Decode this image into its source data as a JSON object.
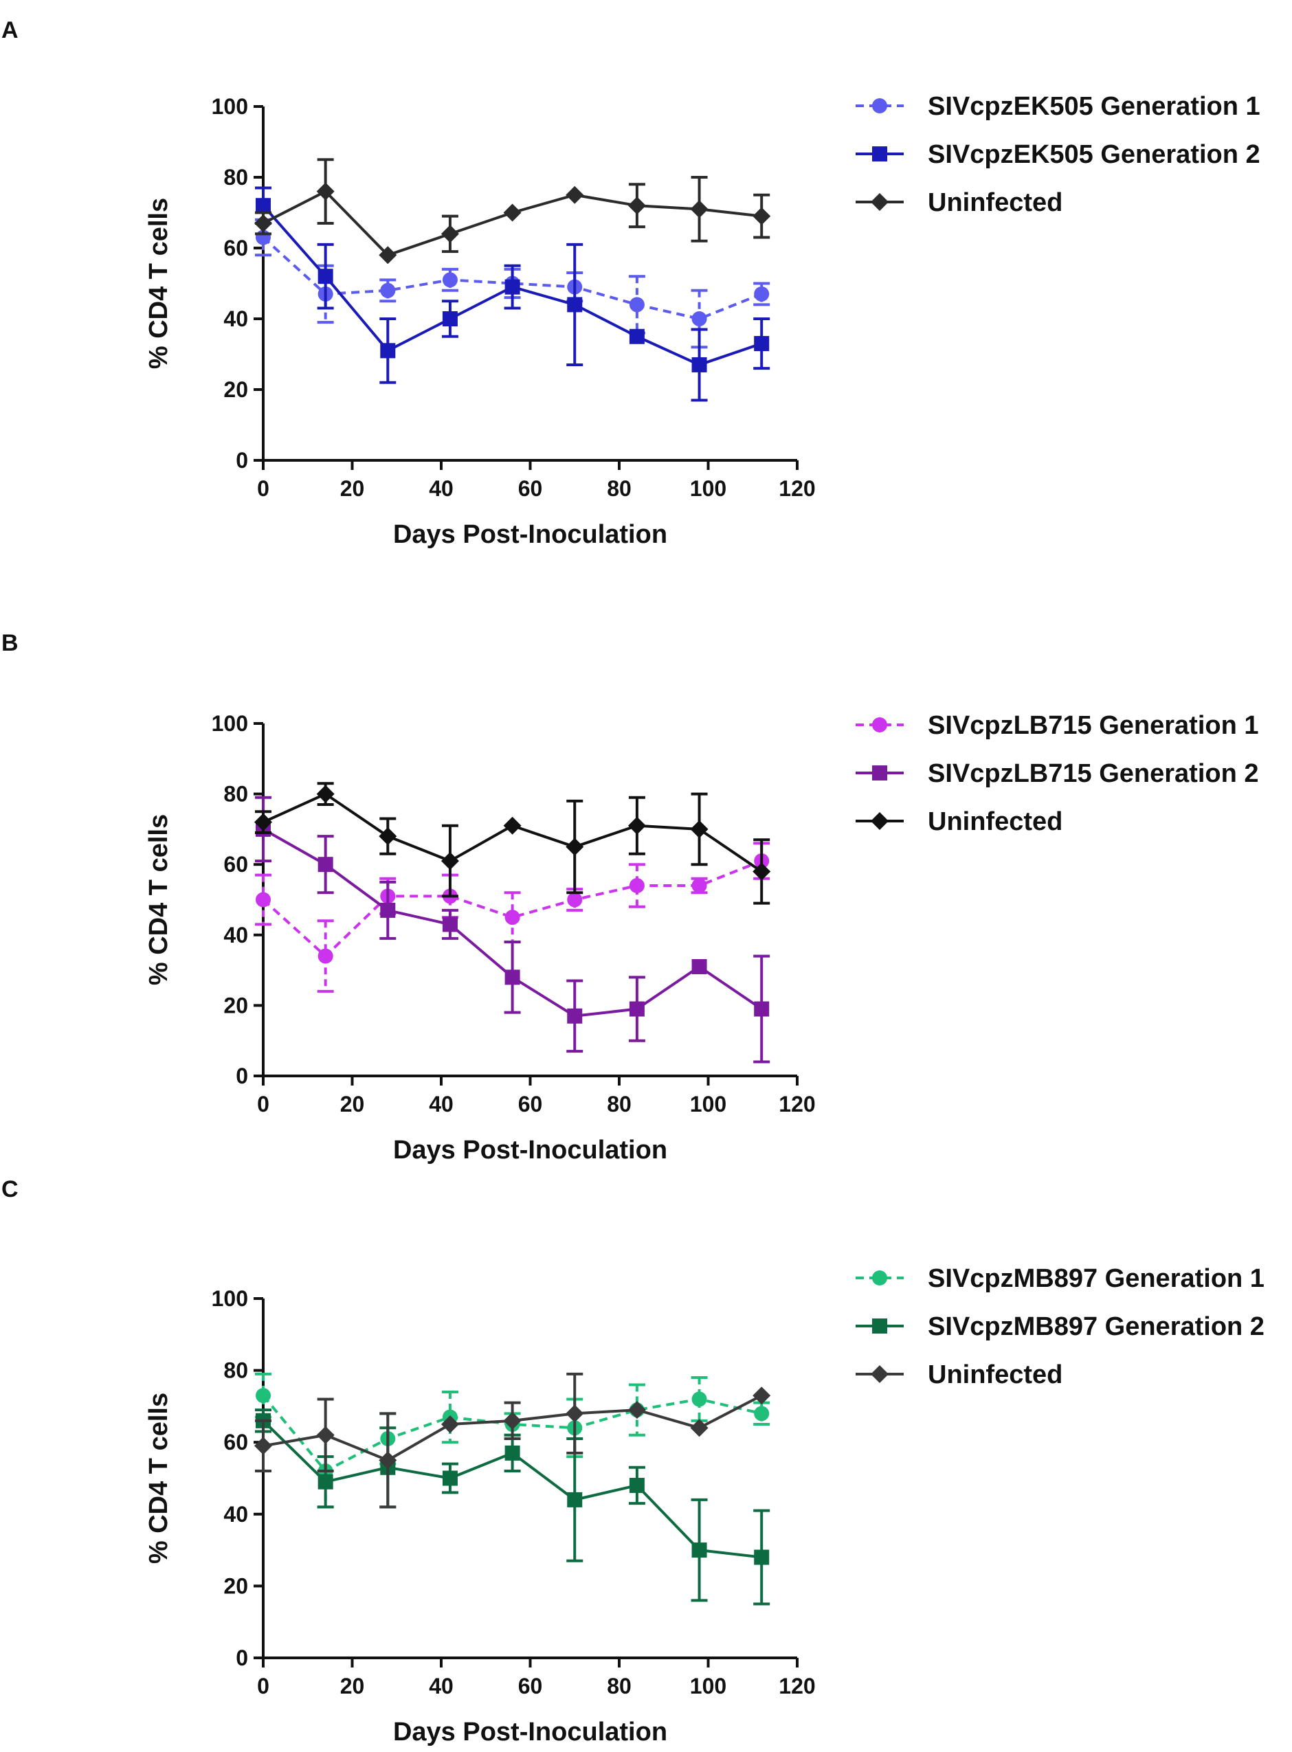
{
  "figure": {
    "panels": [
      {
        "label": "A",
        "chart_data": {
          "type": "line",
          "title": "",
          "xlabel": "Days Post-Inoculation",
          "ylabel": "% CD4 T cells",
          "xlim": [
            0,
            120
          ],
          "ylim": [
            0,
            100
          ],
          "xticks": [
            0,
            20,
            40,
            60,
            80,
            100,
            120
          ],
          "yticks": [
            0,
            20,
            40,
            60,
            80,
            100
          ],
          "legend_position": "top-right",
          "series": [
            {
              "name": "SIVcpzEK505 Generation 1",
              "color": "#5b5bf0",
              "marker": "circle",
              "dash": true,
              "x": [
                0,
                14,
                28,
                42,
                56,
                70,
                84,
                98,
                112
              ],
              "y": [
                63,
                47,
                48,
                51,
                50,
                49,
                44,
                40,
                47
              ],
              "err": [
                5,
                8,
                3,
                3,
                4,
                4,
                8,
                8,
                3
              ]
            },
            {
              "name": "SIVcpzEK505 Generation 2",
              "color": "#1a1ab8",
              "marker": "square",
              "dash": false,
              "x": [
                0,
                14,
                28,
                42,
                56,
                70,
                84,
                98,
                112
              ],
              "y": [
                72,
                52,
                31,
                40,
                49,
                44,
                35,
                27,
                33
              ],
              "err": [
                5,
                9,
                9,
                5,
                6,
                17,
                0,
                10,
                7
              ]
            },
            {
              "name": "Uninfected",
              "color": "#2b2b2b",
              "marker": "diamond",
              "dash": false,
              "x": [
                0,
                14,
                28,
                42,
                56,
                70,
                84,
                98,
                112
              ],
              "y": [
                67,
                76,
                58,
                64,
                70,
                75,
                72,
                71,
                69
              ],
              "err": [
                3,
                9,
                0,
                5,
                0,
                0,
                6,
                9,
                6
              ]
            }
          ]
        }
      },
      {
        "label": "B",
        "chart_data": {
          "type": "line",
          "title": "",
          "xlabel": "Days Post-Inoculation",
          "ylabel": "% CD4 T cells",
          "xlim": [
            0,
            120
          ],
          "ylim": [
            0,
            100
          ],
          "xticks": [
            0,
            20,
            40,
            60,
            80,
            100,
            120
          ],
          "yticks": [
            0,
            20,
            40,
            60,
            80,
            100
          ],
          "legend_position": "top-right",
          "series": [
            {
              "name": "SIVcpzLB715 Generation 1",
              "color": "#cc33ee",
              "marker": "circle",
              "dash": true,
              "x": [
                0,
                14,
                28,
                42,
                56,
                70,
                84,
                98,
                112
              ],
              "y": [
                50,
                34,
                51,
                51,
                45,
                50,
                54,
                54,
                61
              ],
              "err": [
                7,
                10,
                5,
                6,
                7,
                3,
                6,
                2,
                5
              ]
            },
            {
              "name": "SIVcpzLB715 Generation 2",
              "color": "#7a1a9e",
              "marker": "square",
              "dash": false,
              "x": [
                0,
                14,
                28,
                42,
                56,
                70,
                84,
                98,
                112
              ],
              "y": [
                70,
                60,
                47,
                43,
                28,
                17,
                19,
                31,
                19
              ],
              "err": [
                9,
                8,
                8,
                4,
                10,
                10,
                9,
                0,
                15
              ]
            },
            {
              "name": "Uninfected",
              "color": "#111111",
              "marker": "diamond",
              "dash": false,
              "x": [
                0,
                14,
                28,
                42,
                56,
                70,
                84,
                98,
                112
              ],
              "y": [
                72,
                80,
                68,
                61,
                71,
                65,
                71,
                70,
                58
              ],
              "err": [
                3,
                3,
                5,
                10,
                0,
                13,
                8,
                10,
                9
              ]
            }
          ]
        }
      },
      {
        "label": "C",
        "chart_data": {
          "type": "line",
          "title": "",
          "xlabel": "Days Post-Inoculation",
          "ylabel": "% CD4 T cells",
          "xlim": [
            0,
            120
          ],
          "ylim": [
            0,
            100
          ],
          "xticks": [
            0,
            20,
            40,
            60,
            80,
            100,
            120
          ],
          "yticks": [
            0,
            20,
            40,
            60,
            80,
            100
          ],
          "legend_position": "top-right",
          "series": [
            {
              "name": "SIVcpzMB897 Generation 1",
              "color": "#1fbf7a",
              "marker": "circle",
              "dash": true,
              "x": [
                0,
                14,
                28,
                42,
                56,
                70,
                84,
                98,
                112
              ],
              "y": [
                73,
                52,
                61,
                67,
                65,
                64,
                69,
                72,
                68
              ],
              "err": [
                6,
                10,
                7,
                7,
                3,
                8,
                7,
                6,
                3
              ]
            },
            {
              "name": "SIVcpzMB897 Generation 2",
              "color": "#0d6b42",
              "marker": "square",
              "dash": false,
              "x": [
                0,
                14,
                28,
                42,
                56,
                70,
                84,
                98,
                112
              ],
              "y": [
                66,
                49,
                53,
                50,
                57,
                44,
                48,
                30,
                28
              ],
              "err": [
                3,
                7,
                11,
                4,
                5,
                17,
                5,
                14,
                13
              ]
            },
            {
              "name": "Uninfected",
              "color": "#3a3a3a",
              "marker": "diamond",
              "dash": false,
              "x": [
                0,
                14,
                28,
                42,
                56,
                70,
                84,
                98,
                112
              ],
              "y": [
                59,
                62,
                55,
                65,
                66,
                68,
                69,
                64,
                73
              ],
              "err": [
                7,
                10,
                13,
                0,
                5,
                11,
                0,
                0,
                0
              ]
            }
          ]
        }
      }
    ]
  }
}
